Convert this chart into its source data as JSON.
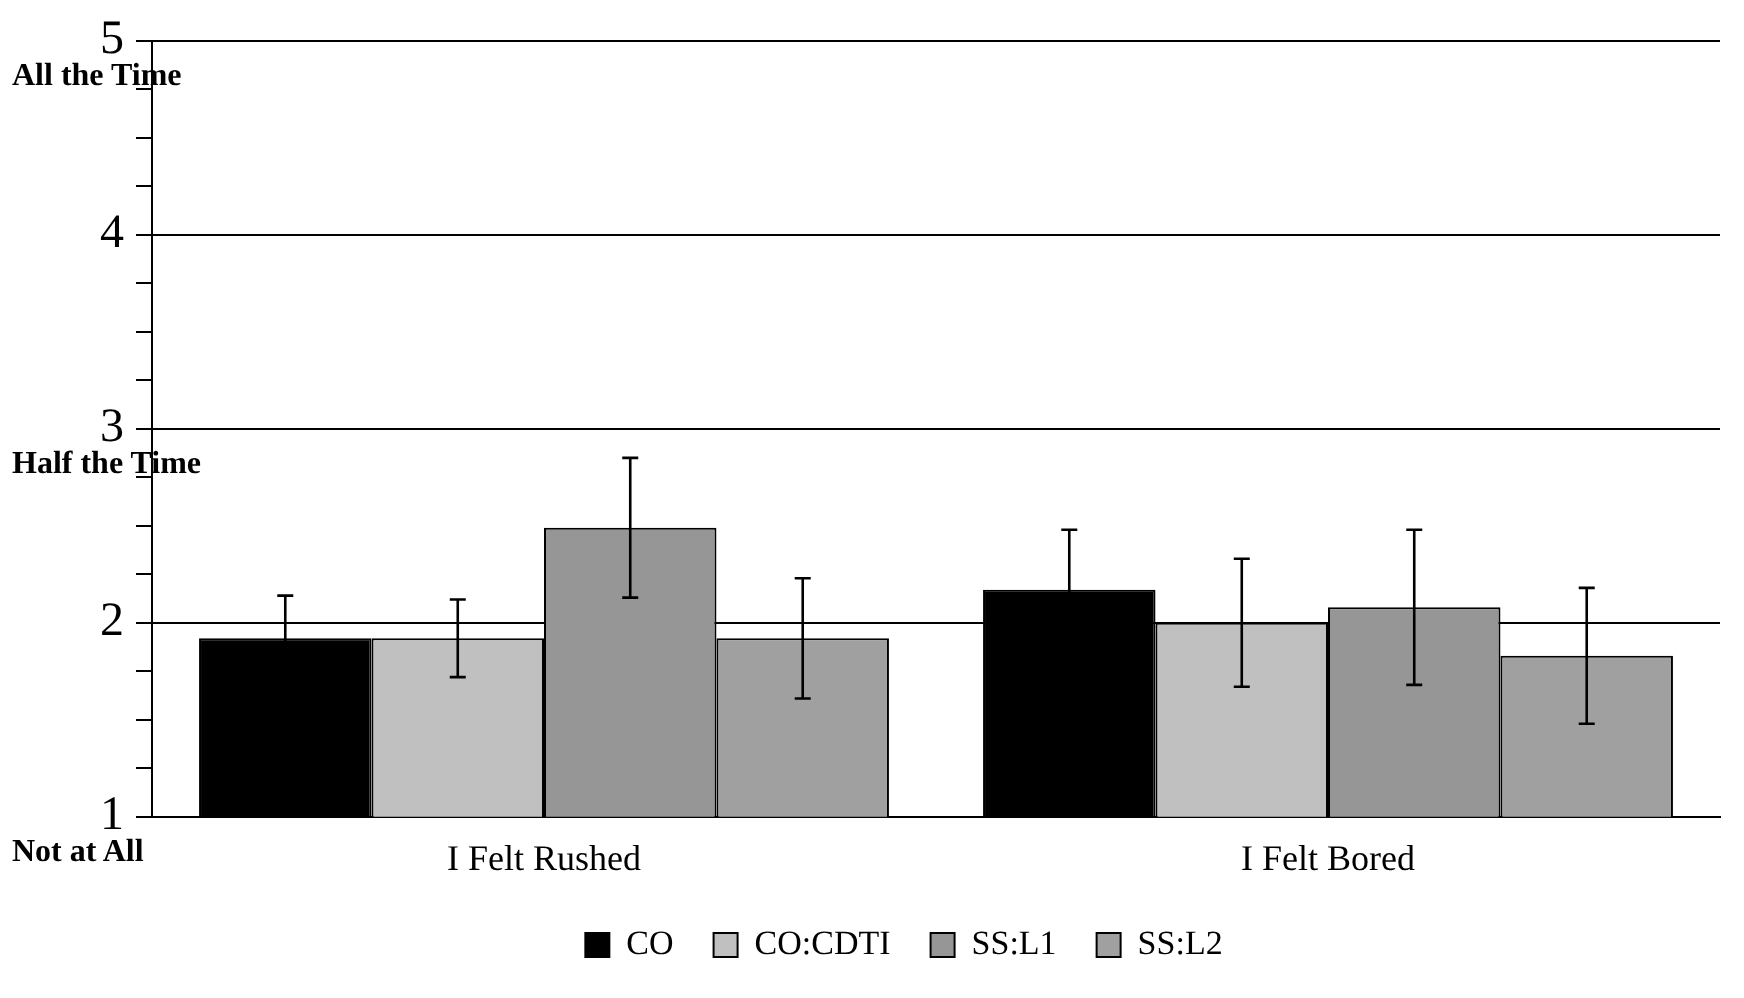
{
  "chart_data": {
    "type": "bar",
    "categories": [
      "I Felt Rushed",
      "I Felt Bored"
    ],
    "series": [
      {
        "name": "CO",
        "color": "#000000",
        "values": [
          1.92,
          2.17
        ],
        "errors": [
          0.22,
          0.31
        ]
      },
      {
        "name": "CO:CDTI",
        "color": "#c0c0c0",
        "values": [
          1.92,
          2.0
        ],
        "errors": [
          0.2,
          0.33
        ]
      },
      {
        "name": "SS:L1",
        "color": "#969696",
        "values": [
          2.49,
          2.08
        ],
        "errors": [
          0.36,
          0.4
        ]
      },
      {
        "name": "SS:L2",
        "color": "#a0a0a0",
        "values": [
          1.92,
          1.83
        ],
        "errors": [
          0.31,
          0.35
        ]
      }
    ],
    "ylim": [
      1,
      5
    ],
    "yticks": [
      1,
      {
        "value": 1.25,
        "label": null
      },
      {
        "value": 1.5,
        "label": null
      },
      {
        "value": 1.75,
        "label": null
      },
      2,
      {
        "value": 2.25,
        "label": null
      },
      {
        "value": 2.5,
        "label": null
      },
      {
        "value": 2.75,
        "label": null
      },
      3,
      {
        "value": 3.25,
        "label": null
      },
      {
        "value": 3.5,
        "label": null
      },
      {
        "value": 3.75,
        "label": null
      },
      4,
      {
        "value": 4.25,
        "label": null
      },
      {
        "value": 4.5,
        "label": null
      },
      {
        "value": 4.75,
        "label": null
      },
      5
    ],
    "annotations": [
      "All the Time",
      "Half the Time",
      "Not at All"
    ],
    "grid": "y",
    "legend": "bottom"
  }
}
